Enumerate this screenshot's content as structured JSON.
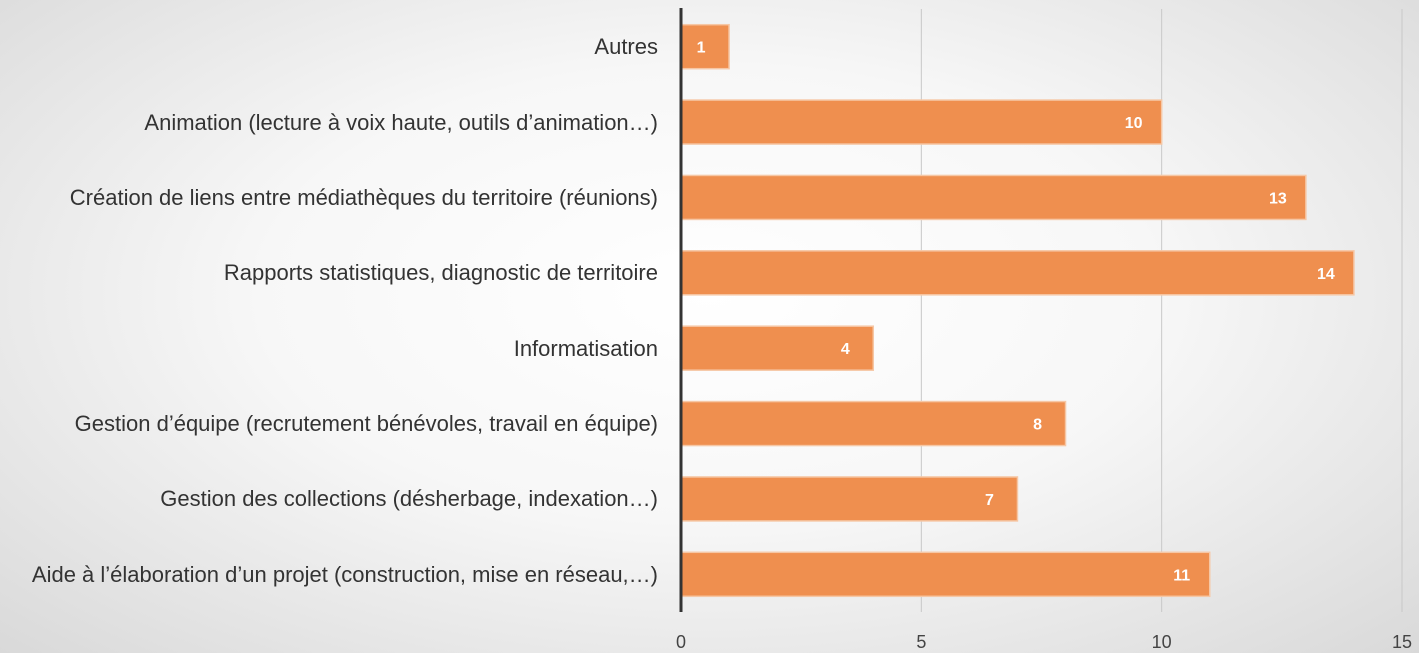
{
  "chart_data": {
    "type": "bar",
    "orientation": "horizontal",
    "categories": [
      "Autres",
      "Animation (lecture à voix haute, outils d’animation…)",
      "Création de liens entre médiathèques du territoire (réunions)",
      "Rapports statistiques, diagnostic de territoire",
      "Informatisation",
      "Gestion d’équipe (recrutement bénévoles, travail en équipe)",
      "Gestion des collections (désherbage, indexation…)",
      "Aide à l’élaboration d’un projet (construction, mise en réseau,…)"
    ],
    "values": [
      1,
      10,
      13,
      14,
      4,
      8,
      7,
      11
    ],
    "color": "#ef8f4f",
    "xlim": [
      0,
      15
    ],
    "xticks": [
      0,
      5,
      10,
      15
    ],
    "grid": true
  }
}
